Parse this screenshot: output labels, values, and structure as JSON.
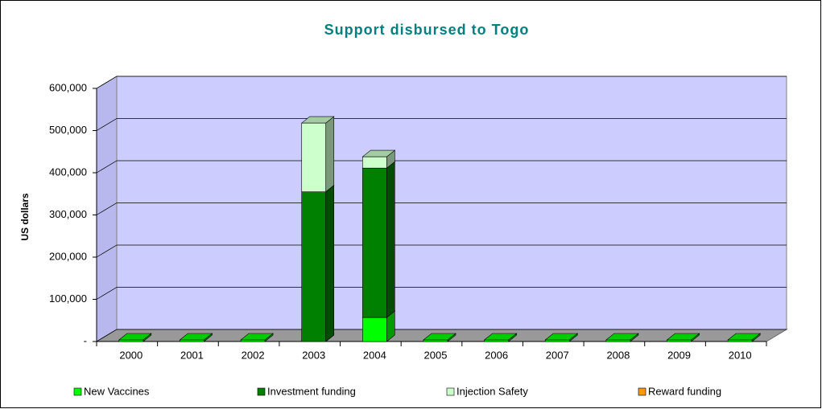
{
  "chart_data": {
    "type": "bar3d_stacked",
    "title": "Support disbursed to Togo",
    "y_label": "US dollars",
    "categories": [
      "2000",
      "2001",
      "2002",
      "2003",
      "2004",
      "2005",
      "2006",
      "2007",
      "2008",
      "2009",
      "2010"
    ],
    "series": [
      {
        "name": "New Vaccines",
        "color": "#00ff00",
        "values": [
          0,
          0,
          0,
          0,
          57000,
          0,
          0,
          0,
          0,
          0,
          0
        ]
      },
      {
        "name": "Investment funding",
        "color": "#008000",
        "values": [
          0,
          0,
          0,
          355000,
          354000,
          0,
          0,
          0,
          0,
          0,
          0
        ]
      },
      {
        "name": "Injection Safety",
        "color": "#ccffcc",
        "values": [
          0,
          0,
          0,
          163000,
          27000,
          0,
          0,
          0,
          0,
          0,
          0
        ]
      },
      {
        "name": "Reward funding",
        "color": "#ff9900",
        "values": [
          0,
          0,
          0,
          0,
          0,
          0,
          0,
          0,
          0,
          0,
          0
        ]
      }
    ],
    "ylim": [
      0,
      600000
    ],
    "yticks": [
      {
        "value": 0,
        "label": "-"
      },
      {
        "value": 100000,
        "label": "100,000"
      },
      {
        "value": 200000,
        "label": "200,000"
      },
      {
        "value": 300000,
        "label": "300,000"
      },
      {
        "value": 400000,
        "label": "400,000"
      },
      {
        "value": 500000,
        "label": "500,000"
      },
      {
        "value": 600000,
        "label": "600,000"
      }
    ],
    "grid": true,
    "legend": "bottom"
  }
}
